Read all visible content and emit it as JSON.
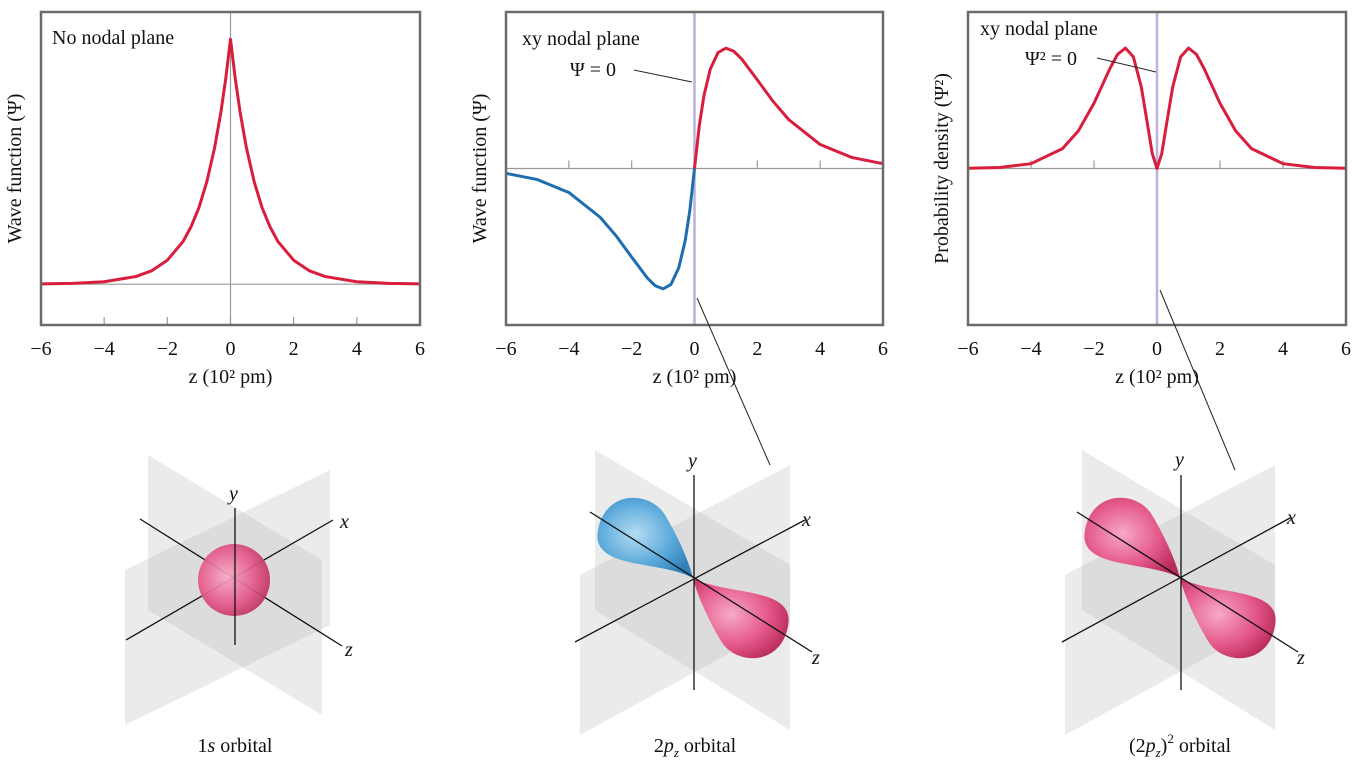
{
  "chart_data": [
    {
      "type": "line",
      "y_label": "Wave function (Ψ)",
      "x_label": "z (10² pm)",
      "annotations": [
        "No nodal plane"
      ],
      "x": [
        -6,
        -5,
        -4,
        -3,
        -2.5,
        -2,
        -1.5,
        -1.25,
        -1,
        -0.75,
        -0.5,
        -0.3,
        -0.15,
        0,
        0.15,
        0.3,
        0.5,
        0.75,
        1,
        1.25,
        1.5,
        2,
        2.5,
        3,
        4,
        5,
        6
      ],
      "series": [
        {
          "color": "#d81e3c",
          "values": [
            0.001,
            0.003,
            0.009,
            0.028,
            0.049,
            0.088,
            0.157,
            0.211,
            0.281,
            0.376,
            0.503,
            0.635,
            0.756,
            0.9,
            0.756,
            0.635,
            0.503,
            0.376,
            0.281,
            0.211,
            0.157,
            0.088,
            0.049,
            0.028,
            0.009,
            0.003,
            0.001
          ]
        }
      ],
      "xlim": [
        -6,
        6
      ],
      "xticks": [
        {
          "value": -6,
          "label": "−6"
        },
        {
          "value": -4,
          "label": "−4"
        },
        {
          "value": -2,
          "label": "−2"
        },
        0,
        2,
        4,
        6
      ],
      "ylim": [
        -0.15,
        1.0
      ],
      "tick_marks": "bottom",
      "zero_line_color": "#9a9a9a"
    },
    {
      "type": "line",
      "y_label": "Wave function (Ψ)",
      "x_label": "z (10² pm)",
      "annotations": [
        "xy nodal plane",
        "Ψ = 0"
      ],
      "x": [
        -6,
        -5,
        -4,
        -3,
        -2.5,
        -2,
        -1.5,
        -1.25,
        -1,
        -0.75,
        -0.5,
        -0.3,
        -0.15,
        0,
        0.15,
        0.3,
        0.5,
        0.75,
        1,
        1.25,
        1.5,
        2,
        2.5,
        3,
        4,
        5,
        6
      ],
      "series": [
        {
          "color": "#1f6db0",
          "values": [
            -0.04,
            -0.092,
            -0.199,
            -0.406,
            -0.558,
            -0.736,
            -0.91,
            -0.974,
            -1,
            -0.963,
            -0.824,
            -0.604,
            -0.351,
            0,
            null,
            null,
            null,
            null,
            null,
            null,
            null,
            null,
            null,
            null,
            null,
            null,
            null
          ]
        },
        {
          "color": "#d81e3c",
          "values": [
            null,
            null,
            null,
            null,
            null,
            null,
            null,
            null,
            null,
            null,
            null,
            null,
            null,
            0,
            0.351,
            0.604,
            0.824,
            0.963,
            1,
            0.974,
            0.91,
            0.736,
            0.558,
            0.406,
            0.199,
            0.092,
            0.04
          ]
        }
      ],
      "xlim": [
        -6,
        6
      ],
      "xticks": [
        {
          "value": -6,
          "label": "−6"
        },
        {
          "value": -4,
          "label": "−4"
        },
        {
          "value": -2,
          "label": "−2"
        },
        0,
        2,
        4,
        6
      ],
      "ylim": [
        -1.3,
        1.3
      ],
      "tick_marks": "zero",
      "zero_line_color": "#b9b2da"
    },
    {
      "type": "line",
      "y_label": "Probability density (Ψ²)",
      "x_label": "z (10² pm)",
      "annotations": [
        "xy nodal plane",
        "Ψ² = 0"
      ],
      "x": [
        -6,
        -5,
        -4,
        -3,
        -2.5,
        -2,
        -1.5,
        -1.25,
        -1,
        -0.75,
        -0.5,
        -0.3,
        -0.15,
        0,
        0.15,
        0.3,
        0.5,
        0.75,
        1,
        1.25,
        1.5,
        2,
        2.5,
        3,
        4,
        5,
        6
      ],
      "series": [
        {
          "color": "#d81e3c",
          "values": [
            0.002,
            0.008,
            0.04,
            0.165,
            0.311,
            0.542,
            0.828,
            0.949,
            1,
            0.927,
            0.679,
            0.365,
            0.123,
            0,
            0.123,
            0.365,
            0.679,
            0.927,
            1,
            0.949,
            0.828,
            0.542,
            0.311,
            0.165,
            0.04,
            0.008,
            0.002
          ]
        }
      ],
      "xlim": [
        -6,
        6
      ],
      "xticks": [
        {
          "value": -6,
          "label": "−6"
        },
        {
          "value": -4,
          "label": "−4"
        },
        {
          "value": -2,
          "label": "−2"
        },
        0,
        2,
        4,
        6
      ],
      "ylim": [
        -1.3,
        1.3
      ],
      "tick_marks": "zero",
      "zero_line_color": "#b9b2da"
    }
  ],
  "orbitals": [
    {
      "caption": [
        "1",
        "s",
        " orbital"
      ],
      "axes": [
        "x",
        "y",
        "z"
      ]
    },
    {
      "caption": [
        "2",
        "p",
        "z",
        " orbital"
      ],
      "axes": [
        "x",
        "y",
        "z"
      ]
    },
    {
      "caption": [
        "(2",
        "p",
        "z",
        ")",
        "2",
        " orbital"
      ],
      "axes": [
        "x",
        "y",
        "z"
      ]
    }
  ]
}
